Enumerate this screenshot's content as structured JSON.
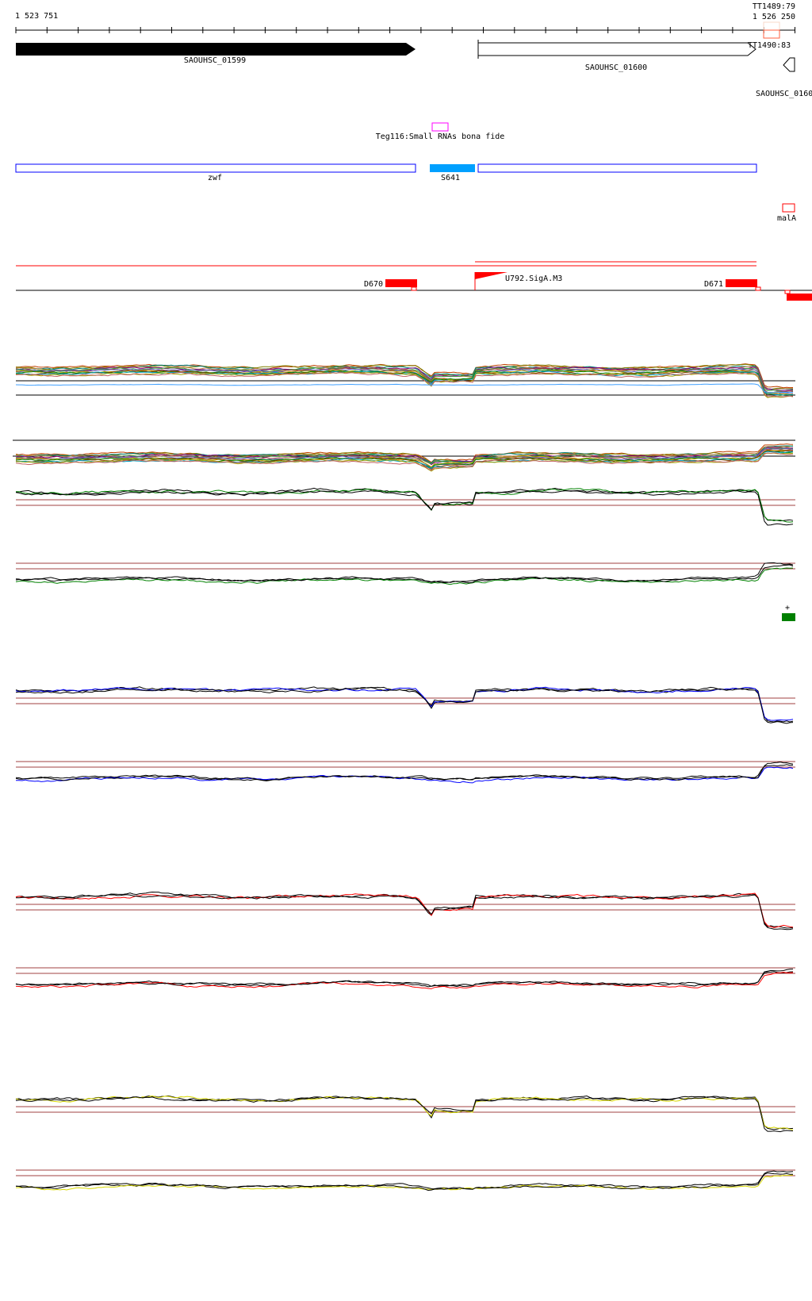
{
  "ruler": {
    "start": "1 523 751",
    "end": "1 526 250",
    "end_overlap": "TT1489:79"
  },
  "genes": [
    {
      "label": "SAOUHSC_01599",
      "strand": "+",
      "filled": true
    },
    {
      "label": "SAOUHSC_01600",
      "strand": "+",
      "filled": false
    },
    {
      "label": "SAOUHSC_0160",
      "strand": "-",
      "filled": false
    }
  ],
  "terminator": {
    "label": "TT1490:83"
  },
  "srna": {
    "label": "Teg116:Small RNAs bona fide",
    "color": "#ff00ff"
  },
  "operons": [
    {
      "label": "zwf",
      "color": "#0000ff"
    },
    {
      "label": "S641",
      "color": "#00a0ff"
    },
    {
      "label": "",
      "color": "#0000ff"
    }
  ],
  "mala": {
    "label": "malA",
    "color": "#ff0000"
  },
  "promoters": [
    {
      "label": "D670"
    },
    {
      "label": "U792.SigA.M3"
    },
    {
      "label": "D671"
    }
  ],
  "marker": {
    "label": "+",
    "color": "#008000"
  },
  "track_colors": [
    "#008000",
    "#0000ff",
    "#ff0000",
    "#d8d800"
  ]
}
